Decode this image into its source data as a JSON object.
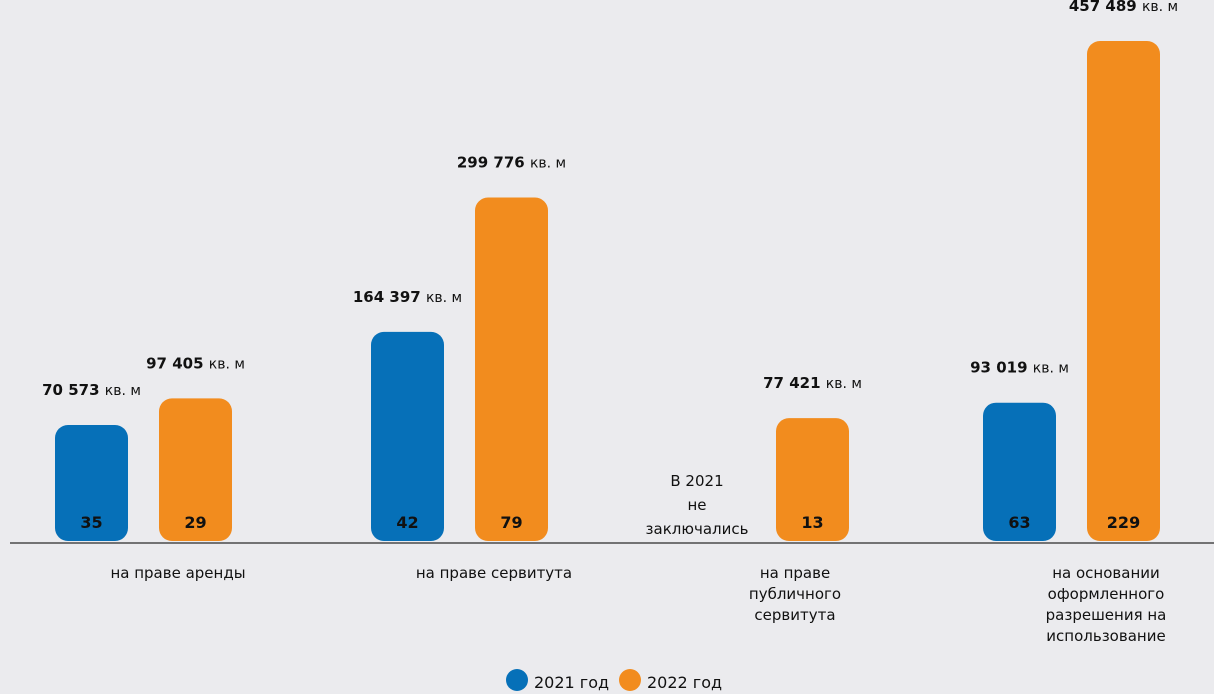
{
  "chart_data": {
    "type": "bar",
    "categories": [
      {
        "lines": [
          "на праве аренды"
        ]
      },
      {
        "lines": [
          "на праве сервитута"
        ]
      },
      {
        "lines": [
          "на праве",
          "публичного",
          "сервитута"
        ]
      },
      {
        "lines": [
          "на основании",
          "оформленного",
          "разрешения на",
          "использование"
        ]
      }
    ],
    "series": [
      {
        "name": "2021 год",
        "color": "#0670b8",
        "counts": [
          "35",
          "42",
          null,
          "63"
        ],
        "area_values": [
          70573,
          164397,
          null,
          93019
        ],
        "area_labels": [
          {
            "num": "70 573",
            "unit": "кв. м"
          },
          {
            "num": "164 397",
            "unit": "кв. м"
          },
          null,
          {
            "num": "93 019",
            "unit": "кв. м"
          }
        ]
      },
      {
        "name": "2022 год",
        "color": "#f28c1e",
        "counts": [
          "29",
          "79",
          "13",
          "229"
        ],
        "area_values": [
          97405,
          299776,
          77421,
          457489
        ],
        "area_labels": [
          {
            "num": "97 405",
            "unit": "кв. м"
          },
          {
            "num": "299 776",
            "unit": "кв. м"
          },
          {
            "num": "77 421",
            "unit": "кв. м"
          },
          {
            "num": "457 489",
            "unit": "кв. м"
          }
        ]
      }
    ],
    "note": {
      "lines": [
        "В 2021",
        "не",
        "заключались"
      ]
    },
    "legend": {
      "position": "bottom"
    }
  }
}
